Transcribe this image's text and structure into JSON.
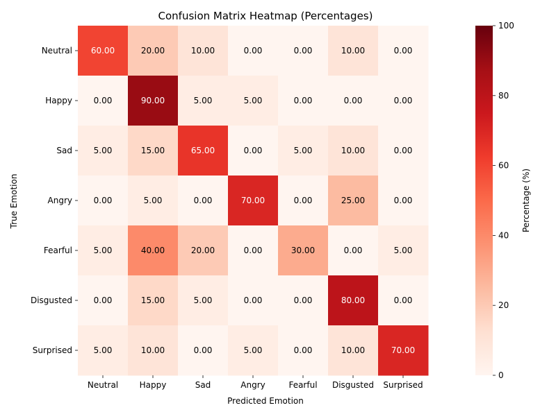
{
  "chart_data": {
    "type": "heatmap",
    "title": "Confusion Matrix Heatmap (Percentages)",
    "xlabel": "Predicted Emotion",
    "ylabel": "True Emotion",
    "x_categories": [
      "Neutral",
      "Happy",
      "Sad",
      "Angry",
      "Fearful",
      "Disgusted",
      "Surprised"
    ],
    "y_categories": [
      "Neutral",
      "Happy",
      "Sad",
      "Angry",
      "Fearful",
      "Disgusted",
      "Surprised"
    ],
    "values": [
      [
        60,
        20,
        10,
        0,
        0,
        10,
        0
      ],
      [
        0,
        90,
        5,
        5,
        0,
        0,
        0
      ],
      [
        5,
        15,
        65,
        0,
        5,
        10,
        0
      ],
      [
        0,
        5,
        0,
        70,
        0,
        25,
        0
      ],
      [
        5,
        40,
        20,
        0,
        30,
        0,
        5
      ],
      [
        0,
        15,
        5,
        0,
        0,
        80,
        0
      ],
      [
        5,
        10,
        0,
        5,
        0,
        10,
        70
      ]
    ],
    "value_format_decimals": 2,
    "colorbar": {
      "label": "Percentage (%)",
      "range": [
        0,
        100
      ],
      "ticks": [
        0,
        20,
        40,
        60,
        80,
        100
      ],
      "colormap": "Reds"
    },
    "grid": false
  }
}
